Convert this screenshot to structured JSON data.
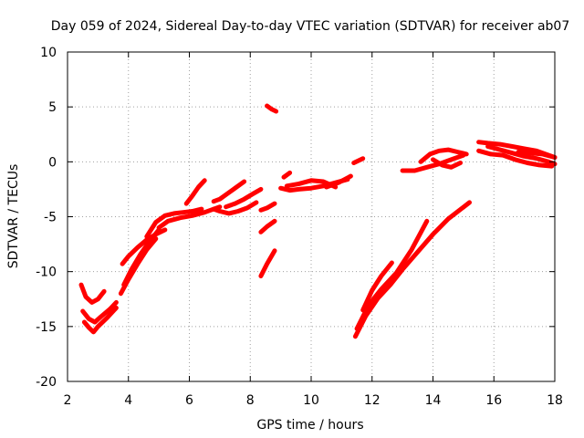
{
  "chart_data": {
    "type": "scatter",
    "title": "Day 059 of 2024, Sidereal Day-to-day VTEC variation (SDTVAR) for receiver ab07",
    "xlabel": "GPS time / hours",
    "ylabel": "SDTVAR / TECUs",
    "xlim": [
      2,
      18
    ],
    "ylim": [
      -20,
      10
    ],
    "xticks": [
      2,
      4,
      6,
      8,
      10,
      12,
      14,
      16,
      18
    ],
    "yticks": [
      -20,
      -15,
      -10,
      -5,
      0,
      5,
      10
    ],
    "grid": true,
    "legend": "none",
    "marker_color": "#ff0000",
    "series": [
      {
        "x": [
          2.45,
          2.6,
          2.8,
          3.0,
          3.2
        ],
        "y": [
          -11.2,
          -12.3,
          -12.8,
          -12.5,
          -11.8
        ]
      },
      {
        "x": [
          2.5,
          2.7,
          2.9,
          3.1,
          3.4,
          3.6
        ],
        "y": [
          -13.6,
          -14.3,
          -14.6,
          -14.1,
          -13.4,
          -12.8
        ]
      },
      {
        "x": [
          2.55,
          2.7,
          2.85,
          3.0,
          3.3,
          3.6
        ],
        "y": [
          -14.6,
          -15.1,
          -15.5,
          -15.0,
          -14.2,
          -13.3
        ]
      },
      {
        "x": [
          3.75,
          4.0,
          4.3,
          4.6,
          4.9
        ],
        "y": [
          -12.0,
          -10.7,
          -9.3,
          -8.0,
          -7.0
        ]
      },
      {
        "x": [
          3.85,
          4.1,
          4.4,
          4.7,
          5.0
        ],
        "y": [
          -11.2,
          -9.8,
          -8.4,
          -7.2,
          -6.2
        ]
      },
      {
        "x": [
          3.8,
          4.0,
          4.3,
          4.6,
          4.9,
          5.2
        ],
        "y": [
          -9.3,
          -8.6,
          -7.8,
          -7.1,
          -6.6,
          -6.2
        ]
      },
      {
        "x": [
          4.6,
          4.9,
          5.2,
          5.5,
          5.8,
          6.1,
          6.4
        ],
        "y": [
          -6.8,
          -5.5,
          -4.9,
          -4.7,
          -4.6,
          -4.5,
          -4.3
        ]
      },
      {
        "x": [
          5.0,
          5.3,
          5.7,
          6.1,
          6.5,
          7.0
        ],
        "y": [
          -6.0,
          -5.4,
          -5.1,
          -4.9,
          -4.6,
          -4.1
        ]
      },
      {
        "x": [
          5.9,
          6.1,
          6.3,
          6.5
        ],
        "y": [
          -3.8,
          -3.1,
          -2.3,
          -1.7
        ]
      },
      {
        "x": [
          6.8,
          7.0,
          7.3,
          7.6,
          7.9,
          8.2
        ],
        "y": [
          -4.3,
          -4.5,
          -4.7,
          -4.5,
          -4.2,
          -3.7
        ]
      },
      {
        "x": [
          6.8,
          7.0,
          7.2,
          7.5,
          7.8
        ],
        "y": [
          -3.6,
          -3.4,
          -3.0,
          -2.4,
          -1.8
        ]
      },
      {
        "x": [
          7.2,
          7.5,
          7.8,
          8.1,
          8.35
        ],
        "y": [
          -4.1,
          -3.8,
          -3.4,
          -2.9,
          -2.5
        ]
      },
      {
        "x": [
          8.35,
          8.55,
          8.8
        ],
        "y": [
          -4.4,
          -4.2,
          -3.8
        ]
      },
      {
        "x": [
          8.35,
          8.55,
          8.8
        ],
        "y": [
          -6.4,
          -5.9,
          -5.4
        ]
      },
      {
        "x": [
          8.35,
          8.55,
          8.8
        ],
        "y": [
          -10.4,
          -9.3,
          -8.1
        ]
      },
      {
        "x": [
          8.55,
          8.7,
          8.85
        ],
        "y": [
          5.1,
          4.8,
          4.6
        ]
      },
      {
        "x": [
          9.1,
          9.3
        ],
        "y": [
          -1.4,
          -1.0
        ]
      },
      {
        "x": [
          9.0,
          9.3,
          9.6,
          10.0,
          10.4,
          10.8,
          11.2
        ],
        "y": [
          -2.4,
          -2.6,
          -2.5,
          -2.4,
          -2.2,
          -1.9,
          -1.6
        ]
      },
      {
        "x": [
          9.2,
          9.6,
          10.0,
          10.4,
          10.8
        ],
        "y": [
          -2.2,
          -2.0,
          -1.7,
          -1.8,
          -2.3
        ]
      },
      {
        "x": [
          10.5,
          10.9,
          11.3
        ],
        "y": [
          -2.3,
          -1.9,
          -1.3
        ]
      },
      {
        "x": [
          11.4,
          11.55,
          11.7
        ],
        "y": [
          -0.1,
          0.1,
          0.3
        ]
      },
      {
        "x": [
          11.45,
          11.8,
          12.2,
          12.6,
          13.0,
          13.5,
          14.0,
          14.5,
          15.2
        ],
        "y": [
          -15.9,
          -14.0,
          -12.4,
          -11.2,
          -9.8,
          -8.2,
          -6.6,
          -5.2,
          -3.7
        ]
      },
      {
        "x": [
          11.5,
          11.9,
          12.3,
          12.8,
          13.3,
          13.8
        ],
        "y": [
          -15.2,
          -13.0,
          -11.6,
          -10.1,
          -8.0,
          -5.4
        ]
      },
      {
        "x": [
          11.7,
          12.0,
          12.3,
          12.65
        ],
        "y": [
          -13.5,
          -11.7,
          -10.4,
          -9.2
        ]
      },
      {
        "x": [
          13.0,
          13.4,
          13.8,
          14.2,
          14.6,
          15.0
        ],
        "y": [
          -0.8,
          -0.8,
          -0.5,
          -0.2,
          0.2,
          0.6
        ]
      },
      {
        "x": [
          13.6,
          13.9,
          14.2,
          14.5,
          14.8,
          15.1
        ],
        "y": [
          0.0,
          0.7,
          1.0,
          1.1,
          0.9,
          0.7
        ]
      },
      {
        "x": [
          14.0,
          14.3,
          14.6,
          14.9
        ],
        "y": [
          0.2,
          -0.3,
          -0.5,
          -0.1
        ]
      },
      {
        "x": [
          15.5,
          15.8,
          16.2,
          16.6,
          17.0,
          17.4,
          17.8,
          18.0
        ],
        "y": [
          1.8,
          1.7,
          1.6,
          1.4,
          1.2,
          1.0,
          0.6,
          0.4
        ]
      },
      {
        "x": [
          15.5,
          15.9,
          16.3,
          16.7,
          17.1,
          17.5,
          17.9
        ],
        "y": [
          1.0,
          0.7,
          0.6,
          0.2,
          -0.1,
          -0.3,
          -0.4
        ]
      },
      {
        "x": [
          15.8,
          16.2,
          16.6,
          17.0,
          17.4,
          17.8,
          18.0
        ],
        "y": [
          1.4,
          1.1,
          0.8,
          0.5,
          0.3,
          0.0,
          -0.2
        ]
      },
      {
        "x": [
          16.8,
          17.2,
          17.6,
          18.0
        ],
        "y": [
          0.9,
          0.8,
          0.7,
          0.4
        ]
      }
    ]
  }
}
